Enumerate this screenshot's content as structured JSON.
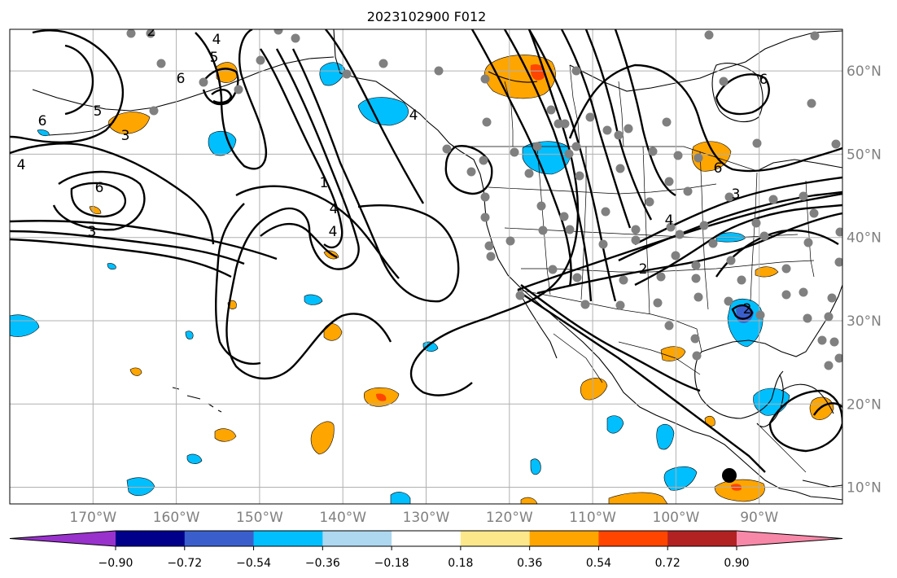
{
  "title": "2023102900 F012",
  "map": {
    "projection": "PlateCarree",
    "lon_range": [
      -180,
      -80
    ],
    "lat_range": [
      8,
      65
    ],
    "gridlines": true
  },
  "lon_ticks": [
    {
      "value": -170,
      "label": "170°W"
    },
    {
      "value": -160,
      "label": "160°W"
    },
    {
      "value": -150,
      "label": "150°W"
    },
    {
      "value": -140,
      "label": "140°W"
    },
    {
      "value": -130,
      "label": "130°W"
    },
    {
      "value": -120,
      "label": "120°W"
    },
    {
      "value": -110,
      "label": "110°W"
    },
    {
      "value": -100,
      "label": "100°W"
    },
    {
      "value": -90,
      "label": "90°W"
    }
  ],
  "lat_ticks": [
    {
      "value": 60,
      "label": "60°N"
    },
    {
      "value": 50,
      "label": "50°N"
    },
    {
      "value": 40,
      "label": "40°N"
    },
    {
      "value": 30,
      "label": "30°N"
    },
    {
      "value": 20,
      "label": "20°N"
    },
    {
      "value": 10,
      "label": "10°N"
    }
  ],
  "colorbar": {
    "ticks": [
      "−0.90",
      "−0.72",
      "−0.54",
      "−0.36",
      "−0.18",
      "0.18",
      "0.36",
      "0.54",
      "0.72",
      "0.90"
    ],
    "colors": [
      "#9932cc",
      "#00008b",
      "#3a5fcd",
      "#00bfff",
      "#add8f0",
      "#ffffff",
      "#fce78a",
      "#ffa500",
      "#ff4500",
      "#b22222",
      "#f888a8"
    ]
  },
  "contour_labels": [
    "2",
    "5",
    "4",
    "6",
    "5",
    "3",
    "6",
    "4",
    "6",
    "3",
    "1",
    "4",
    "4",
    "4",
    "6",
    "3",
    "2",
    "4",
    "6",
    "2"
  ],
  "colors": {
    "positive_shade": "#ffa500",
    "strong_positive_shade": "#ff4500",
    "negative_shade": "#00bfff",
    "strong_negative_shade": "#3a5fcd",
    "station_marker": "#808080",
    "highlight_marker": "#000000"
  }
}
